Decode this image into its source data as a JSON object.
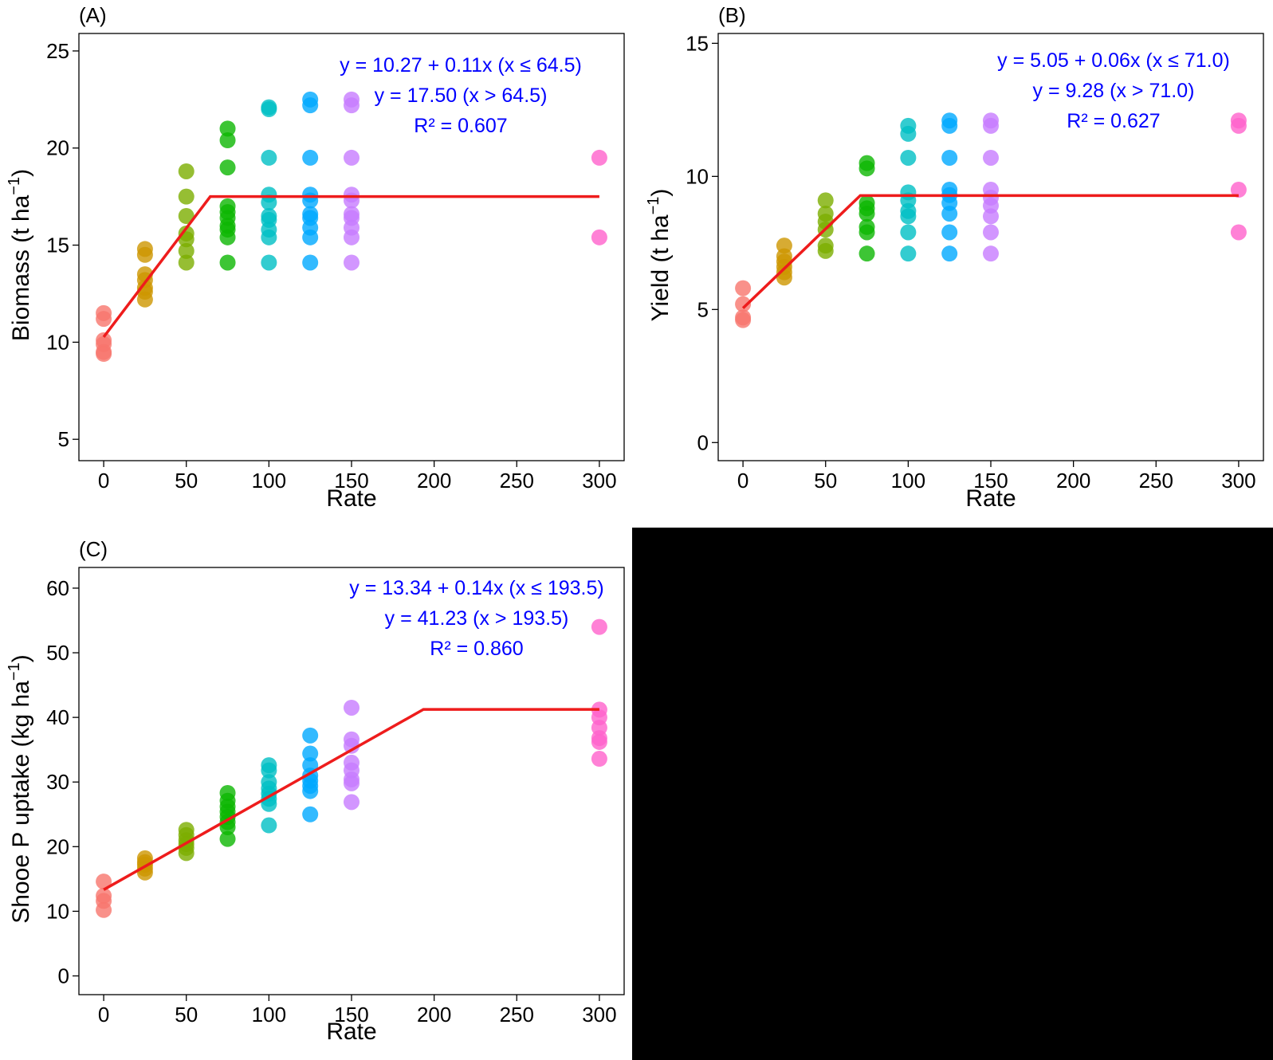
{
  "figure": {
    "background": "#ffffff",
    "empty_panel_color": "#000000"
  },
  "chart_data": [
    {
      "type": "scatter",
      "panel_label": "(A)",
      "xlabel": "Rate",
      "ylabel": "Biomass (t ha",
      "ylabel_sup": "−1",
      "ylabel_close": ")",
      "xlim": [
        -15,
        315
      ],
      "ylim": [
        3.9,
        25.9
      ],
      "xticks": [
        0,
        50,
        100,
        150,
        200,
        250,
        300
      ],
      "yticks": [
        5,
        10,
        15,
        20,
        25
      ],
      "grid": false,
      "equations": [
        "y = 10.27 + 0.11x (x ≤ 64.5)",
        "y = 17.50 (x > 64.5)",
        "R² = 0.607"
      ],
      "fit_line": {
        "color": "#ee1c1c",
        "x": [
          0,
          64.5,
          300
        ],
        "y": [
          10.27,
          17.5,
          17.5
        ]
      },
      "series": [
        {
          "x": 0,
          "color": "#f8766d",
          "values": [
            11.5,
            11.2,
            10.1,
            9.9,
            9.5,
            9.4
          ]
        },
        {
          "x": 25,
          "color": "#cd9600",
          "values": [
            14.8,
            14.5,
            13.5,
            13.2,
            12.8,
            12.6,
            12.2
          ]
        },
        {
          "x": 50,
          "color": "#7cae00",
          "values": [
            18.8,
            17.5,
            16.5,
            15.6,
            15.3,
            14.7,
            14.1
          ]
        },
        {
          "x": 75,
          "color": "#0cb702",
          "values": [
            21.0,
            20.4,
            19.0,
            17.0,
            16.7,
            16.4,
            16.0,
            15.8,
            15.4,
            14.1
          ]
        },
        {
          "x": 100,
          "color": "#00bfc4",
          "values": [
            22.1,
            22.0,
            19.5,
            17.6,
            17.2,
            16.5,
            16.3,
            15.8,
            15.4,
            14.1
          ]
        },
        {
          "x": 125,
          "color": "#00a9ff",
          "values": [
            22.5,
            22.2,
            19.5,
            17.6,
            17.3,
            16.6,
            16.4,
            15.9,
            15.4,
            14.1
          ]
        },
        {
          "x": 150,
          "color": "#c77cff",
          "values": [
            22.5,
            22.2,
            19.5,
            17.6,
            17.3,
            16.6,
            16.4,
            15.9,
            15.4,
            14.1
          ]
        },
        {
          "x": 300,
          "color": "#ff61cc",
          "values": [
            19.5,
            15.4
          ]
        }
      ]
    },
    {
      "type": "scatter",
      "panel_label": "(B)",
      "xlabel": "Rate",
      "ylabel": "Yield (t ha",
      "ylabel_sup": "−1",
      "ylabel_close": ")",
      "xlim": [
        -15,
        315
      ],
      "ylim": [
        -0.68,
        15.37
      ],
      "xticks": [
        0,
        50,
        100,
        150,
        200,
        250,
        300
      ],
      "yticks": [
        0,
        5,
        10,
        15
      ],
      "grid": false,
      "equations": [
        "y = 5.05 + 0.06x (x ≤ 71.0)",
        "y = 9.28 (x > 71.0)",
        "R² = 0.627"
      ],
      "fit_line": {
        "color": "#ee1c1c",
        "x": [
          0,
          71.0,
          300
        ],
        "y": [
          5.05,
          9.28,
          9.28
        ]
      },
      "series": [
        {
          "x": 0,
          "color": "#f8766d",
          "values": [
            5.8,
            5.2,
            4.7,
            4.6
          ]
        },
        {
          "x": 25,
          "color": "#cd9600",
          "values": [
            7.4,
            7.0,
            6.8,
            6.6,
            6.4,
            6.2
          ]
        },
        {
          "x": 50,
          "color": "#7cae00",
          "values": [
            9.1,
            8.6,
            8.3,
            8.0,
            7.4,
            7.2
          ]
        },
        {
          "x": 75,
          "color": "#0cb702",
          "values": [
            10.5,
            10.3,
            9.0,
            8.8,
            8.6,
            8.1,
            7.9,
            7.1
          ]
        },
        {
          "x": 100,
          "color": "#00bfc4",
          "values": [
            11.9,
            11.6,
            10.7,
            9.4,
            9.1,
            8.7,
            8.5,
            7.9,
            7.1
          ]
        },
        {
          "x": 125,
          "color": "#00a9ff",
          "values": [
            12.1,
            11.9,
            10.7,
            9.5,
            9.3,
            9.0,
            8.6,
            7.9,
            7.1
          ]
        },
        {
          "x": 150,
          "color": "#c77cff",
          "values": [
            12.1,
            11.9,
            10.7,
            9.5,
            9.2,
            8.9,
            8.5,
            7.9,
            7.1
          ]
        },
        {
          "x": 300,
          "color": "#ff61cc",
          "values": [
            12.1,
            11.9,
            9.5,
            7.9
          ]
        }
      ]
    },
    {
      "type": "scatter",
      "panel_label": "(C)",
      "xlabel": "Rate",
      "ylabel": "Shooe P uptake (kg ha",
      "ylabel_sup": "−1",
      "ylabel_close": ")",
      "xlim": [
        -15,
        315
      ],
      "ylim": [
        -2.9,
        63.2
      ],
      "xticks": [
        0,
        50,
        100,
        150,
        200,
        250,
        300
      ],
      "yticks": [
        0,
        10,
        20,
        30,
        40,
        50,
        60
      ],
      "grid": false,
      "equations": [
        "y = 13.34 + 0.14x (x ≤ 193.5)",
        "y = 41.23 (x > 193.5)",
        "R² = 0.860"
      ],
      "fit_line": {
        "color": "#ee1c1c",
        "x": [
          0,
          193.5,
          300
        ],
        "y": [
          13.34,
          41.23,
          41.23
        ]
      },
      "series": [
        {
          "x": 0,
          "color": "#f8766d",
          "values": [
            14.6,
            12.4,
            11.6,
            10.2
          ]
        },
        {
          "x": 25,
          "color": "#cd9600",
          "values": [
            18.2,
            17.6,
            17.2,
            16.6,
            16.0
          ]
        },
        {
          "x": 50,
          "color": "#7cae00",
          "values": [
            22.6,
            21.8,
            21.0,
            20.4,
            19.8,
            19.0
          ]
        },
        {
          "x": 75,
          "color": "#0cb702",
          "values": [
            28.3,
            27.1,
            26.2,
            25.4,
            24.6,
            23.8,
            23.0,
            21.2
          ]
        },
        {
          "x": 100,
          "color": "#00bfc4",
          "values": [
            32.6,
            31.8,
            30.0,
            29.0,
            28.2,
            27.4,
            26.6,
            23.3
          ]
        },
        {
          "x": 125,
          "color": "#00a9ff",
          "values": [
            37.2,
            34.4,
            32.6,
            31.0,
            30.2,
            29.4,
            28.6,
            25.0
          ]
        },
        {
          "x": 150,
          "color": "#c77cff",
          "values": [
            41.5,
            36.6,
            35.6,
            33.0,
            31.8,
            30.4,
            29.8,
            26.9
          ]
        },
        {
          "x": 300,
          "color": "#ff61cc",
          "values": [
            54.0,
            41.2,
            40.0,
            38.4,
            36.8,
            36.2,
            33.6
          ]
        }
      ]
    }
  ]
}
